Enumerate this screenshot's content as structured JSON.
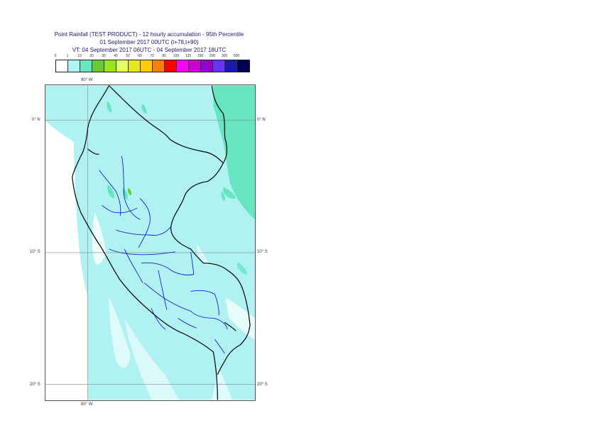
{
  "title": {
    "line1": "Point Rainfall (TEST PRODUCT) - 12 hourly accumulation - 95th Percentile",
    "line2": "01 September 2017 00UTC (t+78,t+90)",
    "line3": "VT: 04 September 2017 06UTC - 04 September 2017 18UTC"
  },
  "legend": {
    "labels": [
      "0",
      "1",
      "10",
      "20",
      "30",
      "40",
      "50",
      "60",
      "70",
      "80",
      "100",
      "125",
      "150",
      "200",
      "300",
      "500"
    ],
    "colors": [
      "#ffffff",
      "#b0f2f2",
      "#66e6c0",
      "#66cc33",
      "#99e61a",
      "#e6ff66",
      "#e6e61a",
      "#ffcc00",
      "#ff8000",
      "#ff0000",
      "#ff00ff",
      "#cc00cc",
      "#9900cc",
      "#6633ff",
      "#1a1aaa",
      "#000055"
    ]
  },
  "axes": {
    "lon_top": "80° W",
    "lon_bottom": "80° W",
    "lat_0_left": "0° N",
    "lat_0_right": "0° N",
    "lat_10_left": "10° S",
    "lat_10_right": "10° S",
    "lat_20_left": "20° S",
    "lat_20_right": "20° S"
  },
  "map_colors": {
    "ocean_background": "#b0f2f2",
    "heavier_rain": "#66e6c0",
    "white_gaps": "#ffffff",
    "country_border": "#000000",
    "region_border": "#0000cc",
    "graticule": "#888888"
  }
}
